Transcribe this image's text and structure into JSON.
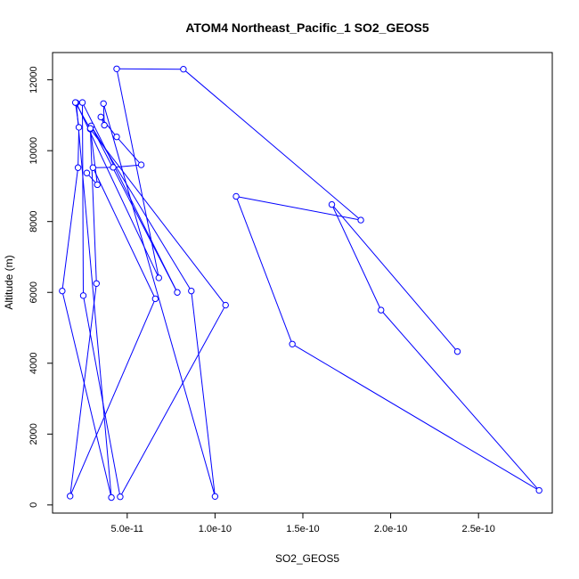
{
  "chart_data": {
    "type": "line",
    "title": "ATOM4 Northeast_Pacific_1 SO2_GEOS5",
    "xlabel": "SO2_GEOS5",
    "ylabel": "Altitude (m)",
    "xlim": [
      7.5e-12,
      2.92e-10
    ],
    "ylim": [
      -230,
      12770
    ],
    "x_ticks": [
      {
        "value": 5e-11,
        "label": "5.0e-11"
      },
      {
        "value": 1e-10,
        "label": "1.0e-10"
      },
      {
        "value": 1.5e-10,
        "label": "1.5e-10"
      },
      {
        "value": 2e-10,
        "label": "2.0e-10"
      },
      {
        "value": 2.5e-10,
        "label": "2.5e-10"
      }
    ],
    "y_ticks": [
      {
        "value": 0,
        "label": "0"
      },
      {
        "value": 2000,
        "label": "2000"
      },
      {
        "value": 4000,
        "label": "4000"
      },
      {
        "value": 6000,
        "label": "6000"
      },
      {
        "value": 8000,
        "label": "8000"
      },
      {
        "value": 10000,
        "label": "10000"
      },
      {
        "value": 12000,
        "label": "12000"
      }
    ],
    "grid": false,
    "marker": "open-circle",
    "line_color": "#0000ff",
    "series": [
      {
        "values": [
          {
            "x": 2.38e-10,
            "y": 4330
          },
          {
            "x": 1.665e-10,
            "y": 8480
          },
          {
            "x": 1.945e-10,
            "y": 5500
          },
          {
            "x": 2.845e-10,
            "y": 410
          },
          {
            "x": 1.44e-10,
            "y": 4540
          },
          {
            "x": 1.12e-10,
            "y": 8710
          },
          {
            "x": 1.83e-10,
            "y": 8040
          },
          {
            "x": 8.2e-11,
            "y": 12300
          },
          {
            "x": 4.4e-11,
            "y": 12310
          },
          {
            "x": 6.8e-11,
            "y": 6410
          },
          {
            "x": 2.1e-11,
            "y": 11350
          },
          {
            "x": 4.1e-11,
            "y": 210
          },
          {
            "x": 1.3e-11,
            "y": 6040
          },
          {
            "x": 2.2e-11,
            "y": 9520
          },
          {
            "x": 2.25e-11,
            "y": 10660
          },
          {
            "x": 2.05e-11,
            "y": 11360
          },
          {
            "x": 2.9e-11,
            "y": 10610
          },
          {
            "x": 1.06e-10,
            "y": 5640
          },
          {
            "x": 4.6e-11,
            "y": 230
          },
          {
            "x": 2.5e-11,
            "y": 5910
          },
          {
            "x": 2.45e-11,
            "y": 11360
          },
          {
            "x": 7.85e-11,
            "y": 6000
          },
          {
            "x": 2.95e-11,
            "y": 10700
          },
          {
            "x": 8.65e-11,
            "y": 6040
          },
          {
            "x": 1e-10,
            "y": 240
          },
          {
            "x": 3.65e-11,
            "y": 11330
          },
          {
            "x": 3.7e-11,
            "y": 10720
          },
          {
            "x": 3.5e-11,
            "y": 10950
          },
          {
            "x": 4.4e-11,
            "y": 10390
          },
          {
            "x": 5.8e-11,
            "y": 9600
          },
          {
            "x": 4.2e-11,
            "y": 9530
          },
          {
            "x": 3.05e-11,
            "y": 9520
          },
          {
            "x": 6.6e-11,
            "y": 5820
          },
          {
            "x": 1.75e-11,
            "y": 250
          },
          {
            "x": 3.25e-11,
            "y": 6250
          },
          {
            "x": 2.9e-11,
            "y": 10630
          },
          {
            "x": 3.3e-11,
            "y": 9040
          },
          {
            "x": 2.7e-11,
            "y": 9370
          }
        ]
      }
    ]
  }
}
